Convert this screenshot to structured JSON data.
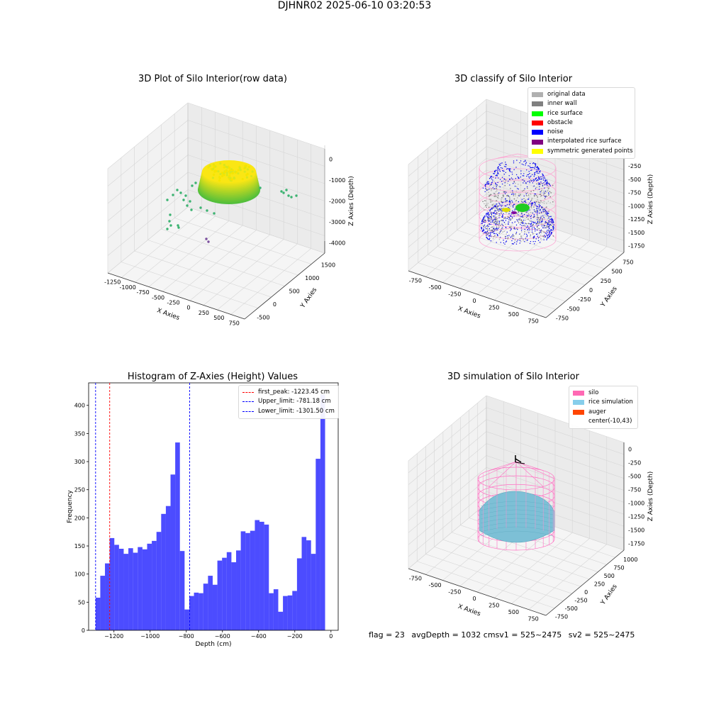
{
  "suptitle": "DJHNR02 2025-06-10 03:20:53",
  "panels": {
    "raw": {
      "title": "3D Plot of Silo Interior(row data)",
      "xlabel": "X Axies",
      "ylabel": "Y Axies",
      "zlabel": "Z Axies (Depth)",
      "xticks": [
        "-1250",
        "-1000",
        "-750",
        "-500",
        "-250",
        "0",
        "250",
        "500",
        "750"
      ],
      "yticks": [
        "-500",
        "0",
        "500",
        "1000",
        "1500"
      ],
      "zticks": [
        "0",
        "-1000",
        "-2000",
        "-3000",
        "-4000"
      ]
    },
    "classify": {
      "title": "3D classify of Silo Interior",
      "xlabel": "X Axies",
      "ylabel": "Y Axies",
      "zlabel": "Z Axies (Depth)",
      "xticks": [
        "-750",
        "-500",
        "-250",
        "0",
        "250",
        "500",
        "750"
      ],
      "yticks": [
        "-750",
        "-500",
        "-250",
        "0",
        "250",
        "500",
        "750"
      ],
      "zticks": [
        "0",
        "-250",
        "-500",
        "-750",
        "-1000",
        "-1250",
        "-1500",
        "-1750"
      ],
      "legend": [
        {
          "label": "original data",
          "color": "#b0b0b0"
        },
        {
          "label": "inner wall",
          "color": "#808080"
        },
        {
          "label": "rice surface",
          "color": "#00ff00"
        },
        {
          "label": "obstacle",
          "color": "#ff0000"
        },
        {
          "label": "noise",
          "color": "#0000ff"
        },
        {
          "label": "interpolated rice surface",
          "color": "#800080"
        },
        {
          "label": "symmetric generated points",
          "color": "#ffff00"
        }
      ]
    },
    "simulation": {
      "title": "3D simulation of Silo Interior",
      "xlabel": "X Axies",
      "ylabel": "Y Axies",
      "zlabel": "Z Axies (Depth)",
      "xticks": [
        "-750",
        "-500",
        "-250",
        "0",
        "250",
        "500",
        "750"
      ],
      "yticks": [
        "-750",
        "-500",
        "-250",
        "0",
        "250",
        "500",
        "750",
        "1000"
      ],
      "zticks": [
        "0",
        "-250",
        "-500",
        "-750",
        "-1000",
        "-1250",
        "-1500",
        "-1750"
      ],
      "legend": [
        {
          "label": "silo",
          "color": "#ff69b4"
        },
        {
          "label": "rice simulation",
          "color": "#87ceeb"
        },
        {
          "label": "auger",
          "color": "#ff4500"
        },
        {
          "label": "center(-10,43)",
          "color": ""
        }
      ]
    }
  },
  "chart_data": {
    "type": "bar",
    "title": "Histogram of Z-Axies (Height) Values",
    "xlabel": "Depth (cm)",
    "ylabel": "Frequency",
    "xlim": [
      -1340,
      40
    ],
    "ylim": [
      0,
      440
    ],
    "xticks": [
      -1200,
      -1000,
      -800,
      -600,
      -400,
      -200,
      0
    ],
    "yticks": [
      0,
      50,
      100,
      150,
      200,
      250,
      300,
      350,
      400
    ],
    "bar_color": "#0000ff",
    "bin_start": -1301.5,
    "bin_width": 25.9,
    "values": [
      58,
      97,
      119,
      164,
      152,
      145,
      136,
      146,
      138,
      148,
      144,
      154,
      159,
      175,
      207,
      221,
      277,
      334,
      141,
      37,
      61,
      67,
      66,
      83,
      97,
      81,
      124,
      129,
      139,
      121,
      142,
      176,
      173,
      177,
      196,
      193,
      188,
      66,
      73,
      33,
      61,
      62,
      70,
      128,
      166,
      160,
      136,
      305,
      420
    ],
    "lines": [
      {
        "label": "first_peak: -1223.45 cm",
        "value": -1223.45,
        "color": "#ff0000"
      },
      {
        "label": "Upper_limit: -781.18 cm",
        "value": -781.18,
        "color": "#0000ff"
      },
      {
        "label": "Lower_limit: -1301.50 cm",
        "value": -1301.5,
        "color": "#0000ff"
      }
    ],
    "legend_position": "top-right"
  },
  "status": {
    "flag": "flag = 23",
    "avg": "avgDepth = 1032 cm",
    "sv1": "sv1 = 525~2475",
    "sv2": "sv2 = 525~2475"
  }
}
